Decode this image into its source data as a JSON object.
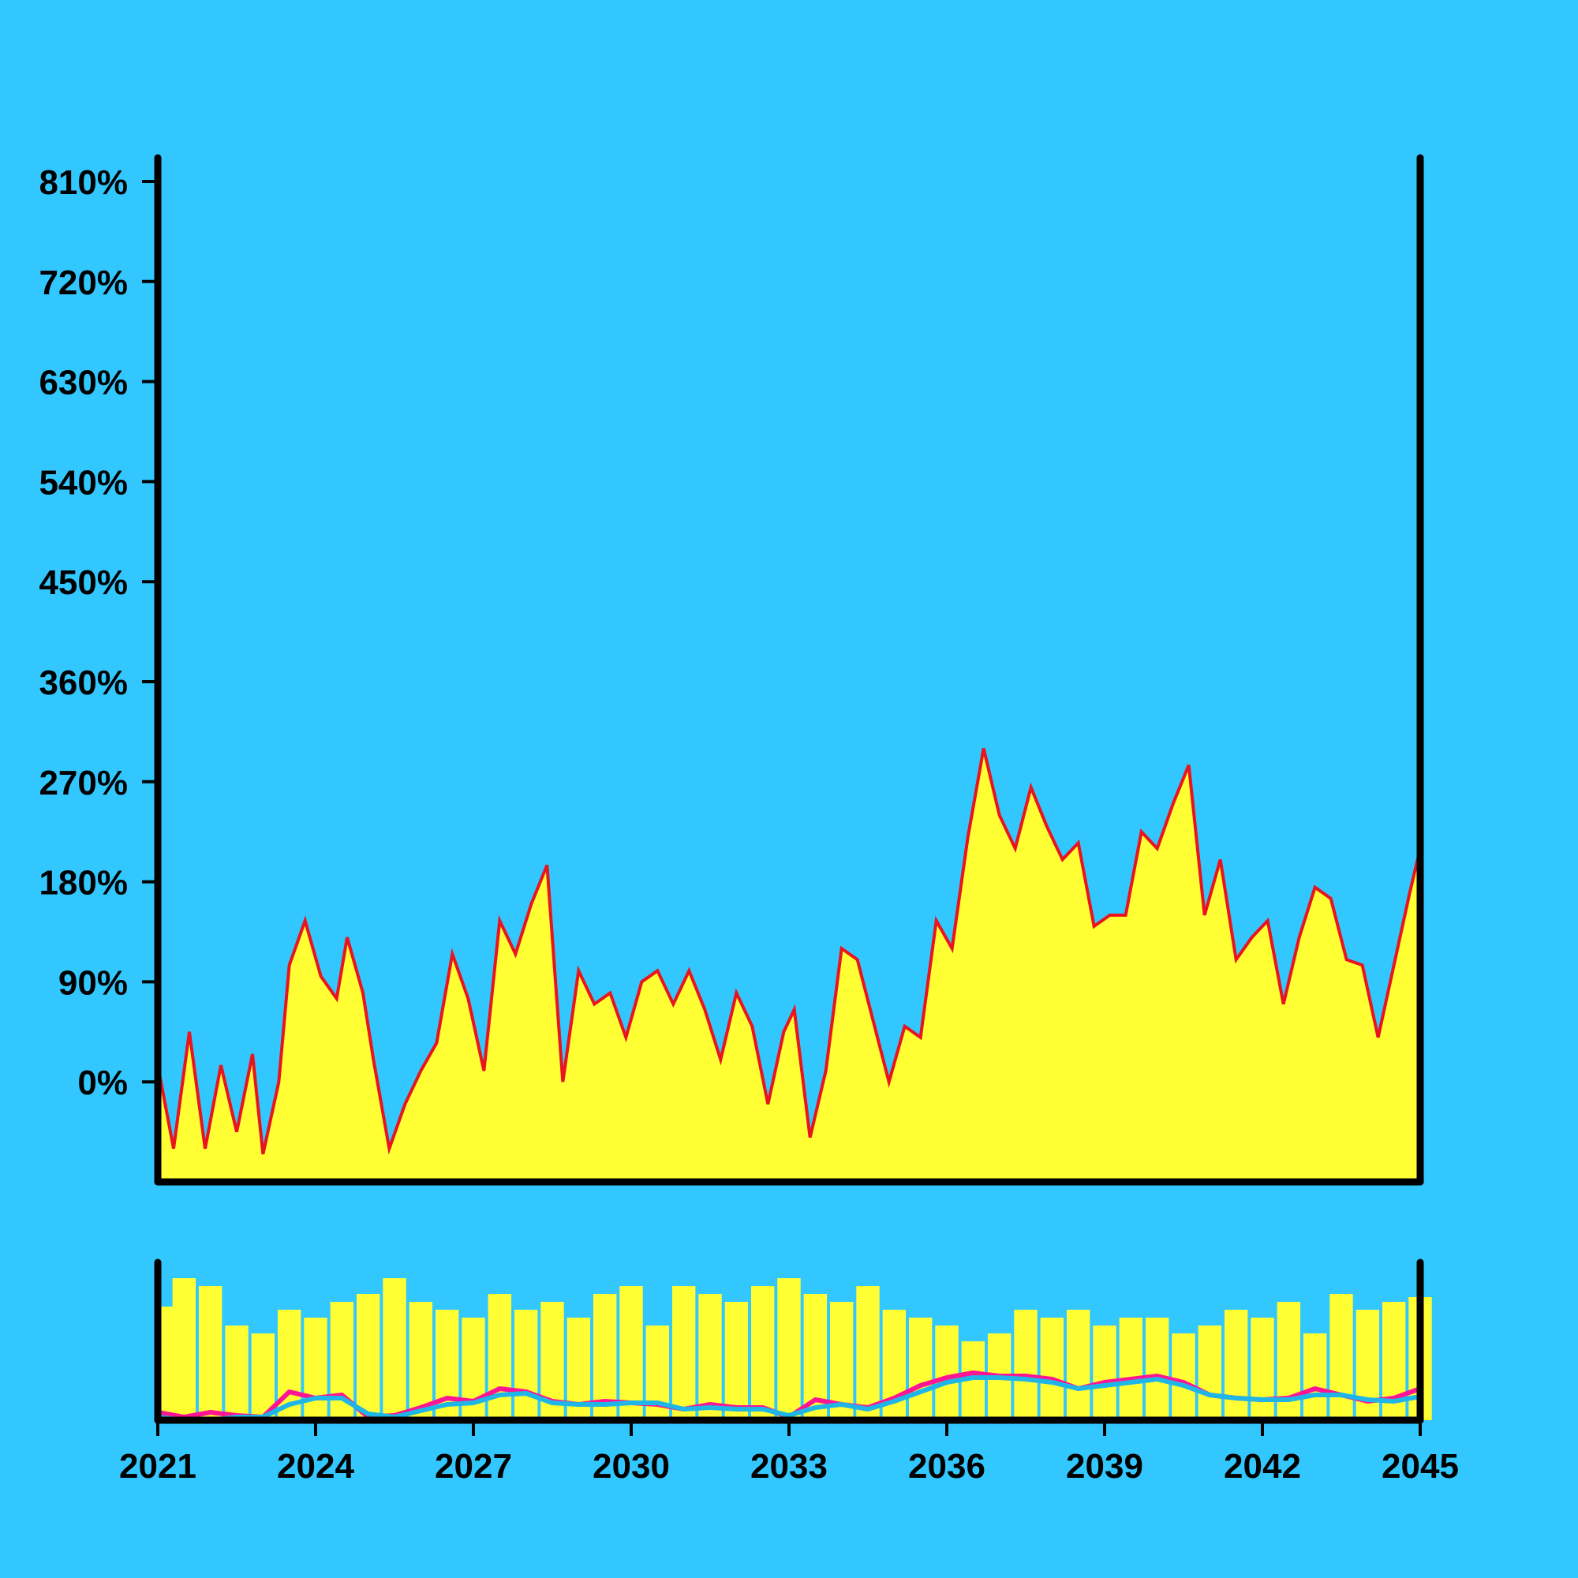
{
  "colors": {
    "background": "#33c7ff",
    "fill": "#ffff33",
    "price_line": "#e8141e",
    "axis": "#000000",
    "ma_fast": "#ff1493",
    "ma_slow": "#1fb5e6"
  },
  "chart_data": [
    {
      "type": "area",
      "panel": "main",
      "title": "",
      "xlabel": "",
      "ylabel": "",
      "x_range": [
        2021,
        2045
      ],
      "ylim": [
        -90,
        810
      ],
      "y_ticks": [
        0,
        90,
        180,
        270,
        360,
        450,
        540,
        630,
        720,
        810
      ],
      "y_tick_labels": [
        "0%",
        "90%",
        "180%",
        "270%",
        "360%",
        "450%",
        "540%",
        "630%",
        "720%",
        "810%"
      ],
      "grid": false,
      "series": [
        {
          "x": [
            2021.0,
            2021.3,
            2021.6,
            2021.9,
            2022.2,
            2022.5,
            2022.8,
            2023.0,
            2023.3,
            2023.5,
            2023.8,
            2024.1,
            2024.4,
            2024.6,
            2024.9,
            2025.1,
            2025.4,
            2025.7,
            2026.0,
            2026.3,
            2026.6,
            2026.9,
            2027.2,
            2027.5,
            2027.8,
            2028.1,
            2028.4,
            2028.7,
            2029.0,
            2029.3,
            2029.6,
            2029.9,
            2030.2,
            2030.5,
            2030.8,
            2031.1,
            2031.4,
            2031.7,
            2032.0,
            2032.3,
            2032.6,
            2032.9,
            2033.1,
            2033.4,
            2033.7,
            2034.0,
            2034.3,
            2034.6,
            2034.9,
            2035.2,
            2035.5,
            2035.8,
            2036.1,
            2036.4,
            2036.7,
            2037.0,
            2037.3,
            2037.6,
            2037.9,
            2038.2,
            2038.5,
            2038.8,
            2039.1,
            2039.4,
            2039.7,
            2040.0,
            2040.3,
            2040.6,
            2040.9,
            2041.2,
            2041.5,
            2041.8,
            2042.1,
            2042.4,
            2042.7,
            2043.0,
            2043.3,
            2043.6,
            2043.9,
            2044.2,
            2044.5,
            2044.8,
            2045.0
          ],
          "y": [
            15,
            -60,
            45,
            -60,
            15,
            -45,
            25,
            -65,
            0,
            105,
            145,
            95,
            75,
            130,
            80,
            20,
            -60,
            -20,
            10,
            35,
            115,
            75,
            10,
            145,
            115,
            160,
            195,
            0,
            100,
            70,
            80,
            40,
            90,
            100,
            70,
            100,
            65,
            20,
            80,
            50,
            -20,
            45,
            65,
            -50,
            10,
            120,
            110,
            55,
            0,
            50,
            40,
            145,
            120,
            220,
            300,
            240,
            210,
            265,
            230,
            200,
            215,
            140,
            150,
            150,
            225,
            210,
            250,
            285,
            150,
            200,
            110,
            130,
            145,
            70,
            130,
            175,
            165,
            110,
            105,
            40,
            105,
            170,
            210
          ]
        }
      ]
    },
    {
      "type": "bar",
      "panel": "volume",
      "title": "",
      "xlabel": "",
      "ylabel": "",
      "x_range": [
        2021,
        2045
      ],
      "x_ticks": [
        2021,
        2024,
        2027,
        2030,
        2033,
        2036,
        2039,
        2042,
        2045
      ],
      "x_tick_labels": [
        "2021",
        "2024",
        "2027",
        "2030",
        "2033",
        "2036",
        "2039",
        "2042",
        "2045"
      ],
      "ylim": [
        0,
        1
      ],
      "grid": false,
      "bars": {
        "x": [
          2021.0,
          2021.5,
          2022.0,
          2022.5,
          2023.0,
          2023.5,
          2024.0,
          2024.5,
          2025.0,
          2025.5,
          2026.0,
          2026.5,
          2027.0,
          2027.5,
          2028.0,
          2028.5,
          2029.0,
          2029.5,
          2030.0,
          2030.5,
          2031.0,
          2031.5,
          2032.0,
          2032.5,
          2033.0,
          2033.5,
          2034.0,
          2034.5,
          2035.0,
          2035.5,
          2036.0,
          2036.5,
          2037.0,
          2037.5,
          2038.0,
          2038.5,
          2039.0,
          2039.5,
          2040.0,
          2040.5,
          2041.0,
          2041.5,
          2042.0,
          2042.5,
          2043.0,
          2043.5,
          2044.0,
          2044.5,
          2045.0
        ],
        "values": [
          0.72,
          0.9,
          0.85,
          0.6,
          0.55,
          0.7,
          0.65,
          0.75,
          0.8,
          0.9,
          0.75,
          0.7,
          0.65,
          0.8,
          0.7,
          0.75,
          0.65,
          0.8,
          0.85,
          0.6,
          0.85,
          0.8,
          0.75,
          0.85,
          0.9,
          0.8,
          0.75,
          0.85,
          0.7,
          0.65,
          0.6,
          0.5,
          0.55,
          0.7,
          0.65,
          0.7,
          0.6,
          0.65,
          0.65,
          0.55,
          0.6,
          0.7,
          0.65,
          0.75,
          0.55,
          0.8,
          0.7,
          0.75,
          0.78
        ]
      },
      "series": [
        {
          "x": [
            2021.0,
            2021.5,
            2022.0,
            2022.5,
            2023.0,
            2023.5,
            2024.0,
            2024.5,
            2025.0,
            2025.5,
            2026.0,
            2026.5,
            2027.0,
            2027.5,
            2028.0,
            2028.5,
            2029.0,
            2029.5,
            2030.0,
            2030.5,
            2031.0,
            2031.5,
            2032.0,
            2032.5,
            2033.0,
            2033.5,
            2034.0,
            2034.5,
            2035.0,
            2035.5,
            2036.0,
            2036.5,
            2037.0,
            2037.5,
            2038.0,
            2038.5,
            2039.0,
            2039.5,
            2040.0,
            2040.5,
            2041.0,
            2041.5,
            2042.0,
            2042.5,
            2043.0,
            2043.5,
            2044.0,
            2044.5,
            2045.0
          ],
          "y": [
            0.05,
            0.02,
            0.05,
            0.03,
            0.02,
            0.18,
            0.14,
            0.16,
            0.02,
            0.03,
            0.08,
            0.14,
            0.12,
            0.2,
            0.18,
            0.12,
            0.1,
            0.12,
            0.11,
            0.1,
            0.07,
            0.1,
            0.08,
            0.08,
            0.02,
            0.13,
            0.1,
            0.08,
            0.14,
            0.22,
            0.27,
            0.3,
            0.28,
            0.28,
            0.26,
            0.2,
            0.24,
            0.26,
            0.28,
            0.24,
            0.16,
            0.14,
            0.13,
            0.14,
            0.2,
            0.16,
            0.12,
            0.14,
            0.2
          ]
        },
        {
          "x": [
            2021.0,
            2021.5,
            2022.0,
            2022.5,
            2023.0,
            2023.5,
            2024.0,
            2024.5,
            2025.0,
            2025.5,
            2026.0,
            2026.5,
            2027.0,
            2027.5,
            2028.0,
            2028.5,
            2029.0,
            2029.5,
            2030.0,
            2030.5,
            2031.0,
            2031.5,
            2032.0,
            2032.5,
            2033.0,
            2033.5,
            2034.0,
            2034.5,
            2035.0,
            2035.5,
            2036.0,
            2036.5,
            2037.0,
            2037.5,
            2038.0,
            2038.5,
            2039.0,
            2039.5,
            2040.0,
            2040.5,
            2041.0,
            2041.5,
            2042.0,
            2042.5,
            2043.0,
            2043.5,
            2044.0,
            2044.5,
            2045.0
          ],
          "y": [
            0.02,
            0.0,
            0.0,
            0.02,
            0.02,
            0.1,
            0.14,
            0.14,
            0.04,
            0.02,
            0.06,
            0.1,
            0.11,
            0.16,
            0.17,
            0.11,
            0.1,
            0.1,
            0.11,
            0.11,
            0.07,
            0.08,
            0.07,
            0.07,
            0.03,
            0.08,
            0.1,
            0.07,
            0.12,
            0.18,
            0.24,
            0.27,
            0.27,
            0.26,
            0.24,
            0.2,
            0.22,
            0.24,
            0.26,
            0.22,
            0.16,
            0.14,
            0.13,
            0.13,
            0.16,
            0.16,
            0.13,
            0.12,
            0.15
          ]
        }
      ]
    }
  ]
}
